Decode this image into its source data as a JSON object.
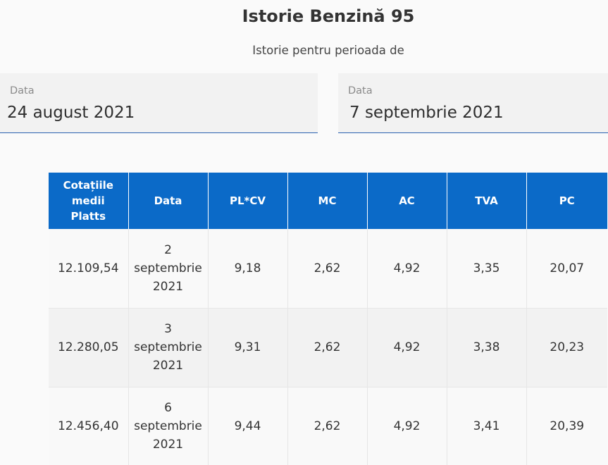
{
  "header": {
    "title": "Istorie Benzină 95",
    "subtitle": "Istorie pentru perioada de"
  },
  "filters": {
    "from": {
      "label": "Data",
      "value": "24 august 2021"
    },
    "to": {
      "label": "Data",
      "value": "7 septembrie 2021"
    }
  },
  "table": {
    "columns": [
      "Cotațiile medii Platts",
      "Data",
      "PL*CV",
      "MC",
      "AC",
      "TVA",
      "PC"
    ],
    "rows": [
      [
        "12.109,54",
        "2 septembrie 2021",
        "9,18",
        "2,62",
        "4,92",
        "3,35",
        "20,07"
      ],
      [
        "12.280,05",
        "3 septembrie 2021",
        "9,31",
        "2,62",
        "4,92",
        "3,38",
        "20,23"
      ],
      [
        "12.456,40",
        "6 septembrie 2021",
        "9,44",
        "2,62",
        "4,92",
        "3,41",
        "20,39"
      ]
    ]
  },
  "colors": {
    "header_bg": "#0b6ac8",
    "field_underline": "#2b63b0"
  }
}
